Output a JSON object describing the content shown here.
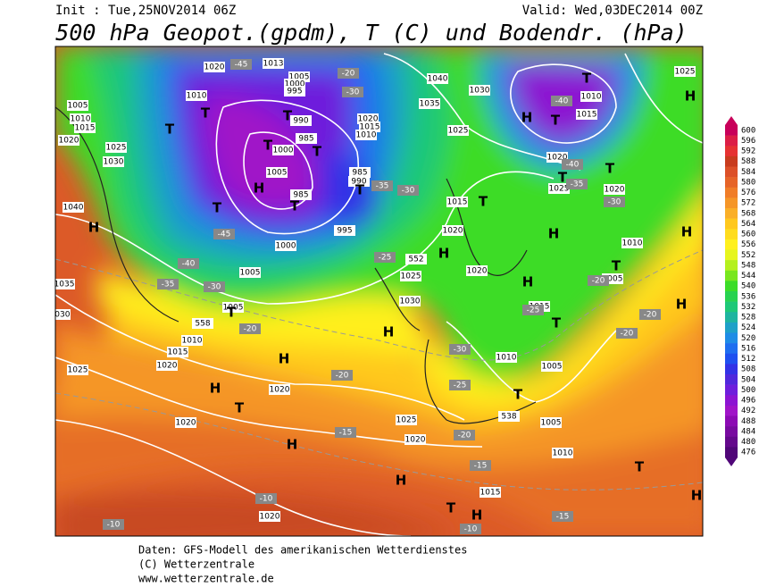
{
  "header": {
    "init": "Init : Tue,25NOV2014 06Z",
    "valid": "Valid: Wed,03DEC2014 00Z",
    "title": "500 hPa Geopot.(gpdm), T (C) und Bodendr. (hPa)"
  },
  "colorbar": {
    "values": [
      600,
      596,
      592,
      588,
      584,
      580,
      576,
      572,
      568,
      564,
      560,
      556,
      552,
      548,
      544,
      540,
      536,
      532,
      528,
      524,
      520,
      516,
      512,
      508,
      504,
      500,
      496,
      492,
      488,
      484,
      480,
      476
    ],
    "colors": [
      "#c8005a",
      "#dc1e46",
      "#e63232",
      "#c83c1e",
      "#dc5028",
      "#e66428",
      "#f07d28",
      "#f59628",
      "#faaf28",
      "#ffc81e",
      "#ffdc1e",
      "#fff01e",
      "#e6f51e",
      "#b4f01e",
      "#78e61e",
      "#3cdc28",
      "#28d250",
      "#1ec878",
      "#1eb4a0",
      "#1ea0c8",
      "#1e8ce6",
      "#1e6ef0",
      "#1e50f0",
      "#3232e6",
      "#5028dc",
      "#6e1edc",
      "#8c14d2",
      "#a014c8",
      "#8c0ab4",
      "#780aa0",
      "#64088c",
      "#500678"
    ]
  },
  "map": {
    "pressure_labels": [
      "1020",
      "1013",
      "1005",
      "1000",
      "995",
      "1040",
      "1030",
      "1035",
      "1025",
      "1010",
      "1015",
      "1025",
      "1005",
      "1010",
      "1015",
      "1020",
      "1025",
      "1030",
      "1010",
      "990",
      "985",
      "1000",
      "1020",
      "1015",
      "1010",
      "1005",
      "985",
      "985",
      "990",
      "995",
      "1040",
      "1020",
      "1025",
      "1020",
      "1015",
      "1020",
      "1010",
      "1005",
      "1005",
      "1035",
      "1030",
      "1025",
      "1030",
      "1020",
      "1005",
      "1010",
      "1015",
      "1020",
      "1025",
      "1015",
      "1010",
      "1005",
      "1020",
      "1020",
      "1025",
      "1020",
      "1005",
      "1010",
      "1015",
      "1020",
      "1000"
    ],
    "temperature_labels": [
      "-45",
      "-45",
      "-40",
      "-35",
      "-30",
      "-20",
      "-40",
      "-40",
      "-35",
      "-30",
      "-30",
      "-20",
      "-35",
      "-30",
      "-25",
      "-25",
      "-30",
      "-25",
      "-20",
      "-20",
      "-20",
      "-20",
      "-15",
      "-20",
      "-15",
      "-15",
      "-10",
      "-10",
      "-10"
    ],
    "height_labels": [
      "552",
      "558",
      "538"
    ],
    "centers": [
      "H",
      "T",
      "T",
      "T",
      "H",
      "T",
      "T",
      "T",
      "T",
      "H",
      "T",
      "T",
      "T",
      "H",
      "T",
      "T",
      "T",
      "H",
      "H",
      "T",
      "H",
      "T",
      "H",
      "H",
      "T",
      "H",
      "H",
      "T",
      "T",
      "H",
      "T",
      "H",
      "H",
      "T",
      "H",
      "H"
    ]
  },
  "footer": [
    "Daten: GFS-Modell des amerikanischen Wetterdienstes",
    "(C) Wetterzentrale",
    "www.wetterzentrale.de"
  ]
}
